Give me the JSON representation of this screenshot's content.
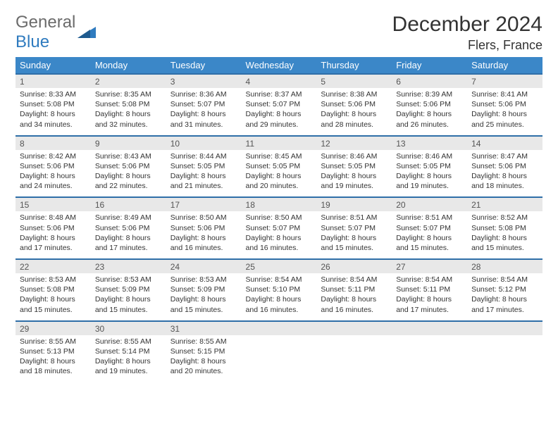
{
  "logo": {
    "general": "General",
    "blue": "Blue"
  },
  "title": "December 2024",
  "location": "Flers, France",
  "colors": {
    "header_bg": "#3b87c8",
    "header_text": "#ffffff",
    "daynum_bg": "#e8e8e8",
    "row_divider": "#2f6fa8",
    "logo_gray": "#6b6b6b",
    "logo_blue": "#2f7bbf",
    "text": "#333333"
  },
  "day_headers": [
    "Sunday",
    "Monday",
    "Tuesday",
    "Wednesday",
    "Thursday",
    "Friday",
    "Saturday"
  ],
  "weeks": [
    [
      {
        "n": "1",
        "sunrise": "Sunrise: 8:33 AM",
        "sunset": "Sunset: 5:08 PM",
        "dl1": "Daylight: 8 hours",
        "dl2": "and 34 minutes."
      },
      {
        "n": "2",
        "sunrise": "Sunrise: 8:35 AM",
        "sunset": "Sunset: 5:08 PM",
        "dl1": "Daylight: 8 hours",
        "dl2": "and 32 minutes."
      },
      {
        "n": "3",
        "sunrise": "Sunrise: 8:36 AM",
        "sunset": "Sunset: 5:07 PM",
        "dl1": "Daylight: 8 hours",
        "dl2": "and 31 minutes."
      },
      {
        "n": "4",
        "sunrise": "Sunrise: 8:37 AM",
        "sunset": "Sunset: 5:07 PM",
        "dl1": "Daylight: 8 hours",
        "dl2": "and 29 minutes."
      },
      {
        "n": "5",
        "sunrise": "Sunrise: 8:38 AM",
        "sunset": "Sunset: 5:06 PM",
        "dl1": "Daylight: 8 hours",
        "dl2": "and 28 minutes."
      },
      {
        "n": "6",
        "sunrise": "Sunrise: 8:39 AM",
        "sunset": "Sunset: 5:06 PM",
        "dl1": "Daylight: 8 hours",
        "dl2": "and 26 minutes."
      },
      {
        "n": "7",
        "sunrise": "Sunrise: 8:41 AM",
        "sunset": "Sunset: 5:06 PM",
        "dl1": "Daylight: 8 hours",
        "dl2": "and 25 minutes."
      }
    ],
    [
      {
        "n": "8",
        "sunrise": "Sunrise: 8:42 AM",
        "sunset": "Sunset: 5:06 PM",
        "dl1": "Daylight: 8 hours",
        "dl2": "and 24 minutes."
      },
      {
        "n": "9",
        "sunrise": "Sunrise: 8:43 AM",
        "sunset": "Sunset: 5:06 PM",
        "dl1": "Daylight: 8 hours",
        "dl2": "and 22 minutes."
      },
      {
        "n": "10",
        "sunrise": "Sunrise: 8:44 AM",
        "sunset": "Sunset: 5:05 PM",
        "dl1": "Daylight: 8 hours",
        "dl2": "and 21 minutes."
      },
      {
        "n": "11",
        "sunrise": "Sunrise: 8:45 AM",
        "sunset": "Sunset: 5:05 PM",
        "dl1": "Daylight: 8 hours",
        "dl2": "and 20 minutes."
      },
      {
        "n": "12",
        "sunrise": "Sunrise: 8:46 AM",
        "sunset": "Sunset: 5:05 PM",
        "dl1": "Daylight: 8 hours",
        "dl2": "and 19 minutes."
      },
      {
        "n": "13",
        "sunrise": "Sunrise: 8:46 AM",
        "sunset": "Sunset: 5:05 PM",
        "dl1": "Daylight: 8 hours",
        "dl2": "and 19 minutes."
      },
      {
        "n": "14",
        "sunrise": "Sunrise: 8:47 AM",
        "sunset": "Sunset: 5:06 PM",
        "dl1": "Daylight: 8 hours",
        "dl2": "and 18 minutes."
      }
    ],
    [
      {
        "n": "15",
        "sunrise": "Sunrise: 8:48 AM",
        "sunset": "Sunset: 5:06 PM",
        "dl1": "Daylight: 8 hours",
        "dl2": "and 17 minutes."
      },
      {
        "n": "16",
        "sunrise": "Sunrise: 8:49 AM",
        "sunset": "Sunset: 5:06 PM",
        "dl1": "Daylight: 8 hours",
        "dl2": "and 17 minutes."
      },
      {
        "n": "17",
        "sunrise": "Sunrise: 8:50 AM",
        "sunset": "Sunset: 5:06 PM",
        "dl1": "Daylight: 8 hours",
        "dl2": "and 16 minutes."
      },
      {
        "n": "18",
        "sunrise": "Sunrise: 8:50 AM",
        "sunset": "Sunset: 5:07 PM",
        "dl1": "Daylight: 8 hours",
        "dl2": "and 16 minutes."
      },
      {
        "n": "19",
        "sunrise": "Sunrise: 8:51 AM",
        "sunset": "Sunset: 5:07 PM",
        "dl1": "Daylight: 8 hours",
        "dl2": "and 15 minutes."
      },
      {
        "n": "20",
        "sunrise": "Sunrise: 8:51 AM",
        "sunset": "Sunset: 5:07 PM",
        "dl1": "Daylight: 8 hours",
        "dl2": "and 15 minutes."
      },
      {
        "n": "21",
        "sunrise": "Sunrise: 8:52 AM",
        "sunset": "Sunset: 5:08 PM",
        "dl1": "Daylight: 8 hours",
        "dl2": "and 15 minutes."
      }
    ],
    [
      {
        "n": "22",
        "sunrise": "Sunrise: 8:53 AM",
        "sunset": "Sunset: 5:08 PM",
        "dl1": "Daylight: 8 hours",
        "dl2": "and 15 minutes."
      },
      {
        "n": "23",
        "sunrise": "Sunrise: 8:53 AM",
        "sunset": "Sunset: 5:09 PM",
        "dl1": "Daylight: 8 hours",
        "dl2": "and 15 minutes."
      },
      {
        "n": "24",
        "sunrise": "Sunrise: 8:53 AM",
        "sunset": "Sunset: 5:09 PM",
        "dl1": "Daylight: 8 hours",
        "dl2": "and 15 minutes."
      },
      {
        "n": "25",
        "sunrise": "Sunrise: 8:54 AM",
        "sunset": "Sunset: 5:10 PM",
        "dl1": "Daylight: 8 hours",
        "dl2": "and 16 minutes."
      },
      {
        "n": "26",
        "sunrise": "Sunrise: 8:54 AM",
        "sunset": "Sunset: 5:11 PM",
        "dl1": "Daylight: 8 hours",
        "dl2": "and 16 minutes."
      },
      {
        "n": "27",
        "sunrise": "Sunrise: 8:54 AM",
        "sunset": "Sunset: 5:11 PM",
        "dl1": "Daylight: 8 hours",
        "dl2": "and 17 minutes."
      },
      {
        "n": "28",
        "sunrise": "Sunrise: 8:54 AM",
        "sunset": "Sunset: 5:12 PM",
        "dl1": "Daylight: 8 hours",
        "dl2": "and 17 minutes."
      }
    ],
    [
      {
        "n": "29",
        "sunrise": "Sunrise: 8:55 AM",
        "sunset": "Sunset: 5:13 PM",
        "dl1": "Daylight: 8 hours",
        "dl2": "and 18 minutes."
      },
      {
        "n": "30",
        "sunrise": "Sunrise: 8:55 AM",
        "sunset": "Sunset: 5:14 PM",
        "dl1": "Daylight: 8 hours",
        "dl2": "and 19 minutes."
      },
      {
        "n": "31",
        "sunrise": "Sunrise: 8:55 AM",
        "sunset": "Sunset: 5:15 PM",
        "dl1": "Daylight: 8 hours",
        "dl2": "and 20 minutes."
      },
      null,
      null,
      null,
      null
    ]
  ]
}
